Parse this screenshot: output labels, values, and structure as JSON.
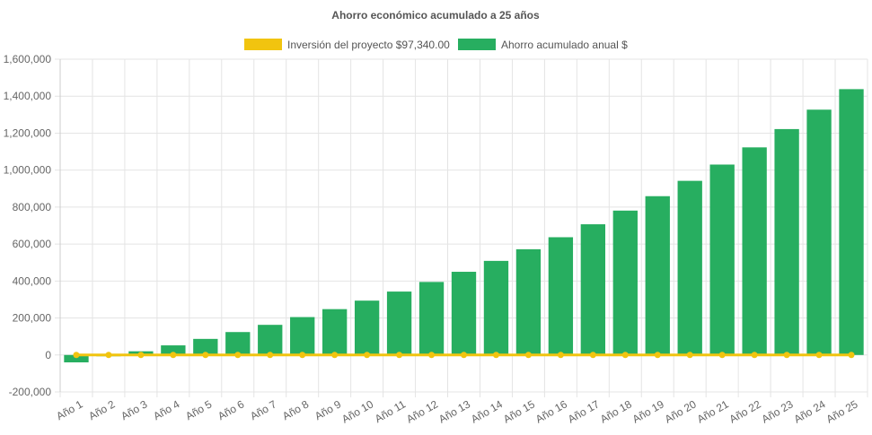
{
  "chart_data": {
    "type": "bar",
    "title": "Ahorro económico acumulado a 25 años",
    "legend_position": "top",
    "grid": true,
    "categories": [
      "Año 1",
      "Año 2",
      "Año 3",
      "Año 4",
      "Año 5",
      "Año 6",
      "Año 7",
      "Año 8",
      "Año 9",
      "Año 10",
      "Año 11",
      "Año 12",
      "Año 13",
      "Año 14",
      "Año 15",
      "Año 16",
      "Año 17",
      "Año 18",
      "Año 19",
      "Año 20",
      "Año 21",
      "Año 22",
      "Año 23",
      "Año 24",
      "Año 25"
    ],
    "ylim": [
      -200000,
      1600000
    ],
    "y_ticks": [
      "1,600,000",
      "1,400,000",
      "1,200,000",
      "1,000,000",
      "800,000",
      "600,000",
      "400,000",
      "200,000",
      "0",
      "-200,000"
    ],
    "y_tick_values": [
      1600000,
      1400000,
      1200000,
      1000000,
      800000,
      600000,
      400000,
      200000,
      0,
      -200000
    ],
    "series": [
      {
        "name": "Inversión del proyecto $97,340.00",
        "type": "line",
        "color": "#f1c40f",
        "values": [
          0,
          0,
          0,
          0,
          0,
          0,
          0,
          0,
          0,
          0,
          0,
          0,
          0,
          0,
          0,
          0,
          0,
          0,
          0,
          0,
          0,
          0,
          0,
          0,
          0
        ]
      },
      {
        "name": "Ahorro acumulado anual $",
        "type": "bar",
        "color": "#27ae60",
        "values": [
          -40000,
          -7000,
          20000,
          52000,
          87000,
          124000,
          163000,
          205000,
          248000,
          294000,
          343000,
          395000,
          450000,
          509000,
          572000,
          637000,
          707000,
          781000,
          859000,
          942000,
          1030000,
          1123000,
          1222000,
          1327000,
          1438000
        ]
      }
    ]
  }
}
